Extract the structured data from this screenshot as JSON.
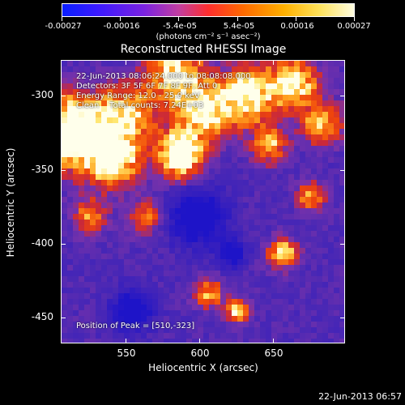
{
  "colorbar": {
    "ticks": [
      "-0.00027",
      "-0.00016",
      "-5.4e-05",
      "5.4e-05",
      "0.00016",
      "0.00027"
    ],
    "units": "(photons cm⁻² s⁻¹ asec⁻²)",
    "colors": [
      "#0a1fff",
      "#7a22e0",
      "#ff2e2e",
      "#ff6a00",
      "#ffb000",
      "#fffde0"
    ]
  },
  "plot": {
    "title": "Reconstructed RHESSI Image",
    "x_axis_title": "Heliocentric X (arcsec)",
    "y_axis_title": "Heliocentric Y (arcsec)",
    "x_ticks": [
      "550",
      "600",
      "650"
    ],
    "y_ticks": [
      "-300",
      "-350",
      "-400",
      "-450"
    ],
    "info_lines": [
      "22-Jun-2013 08:06:24.000 to 08:08:08.000",
      "Detectors: 3F 5F 6F 7F 8F 9F, Att 0",
      "Energy Range: 12.0 - 25.0 keV",
      "Clean    Total counts: 7.24E+03"
    ],
    "peak_text": "Position of Peak = [510,-323]"
  },
  "timestamp": "22-Jun-2013 06:57"
}
